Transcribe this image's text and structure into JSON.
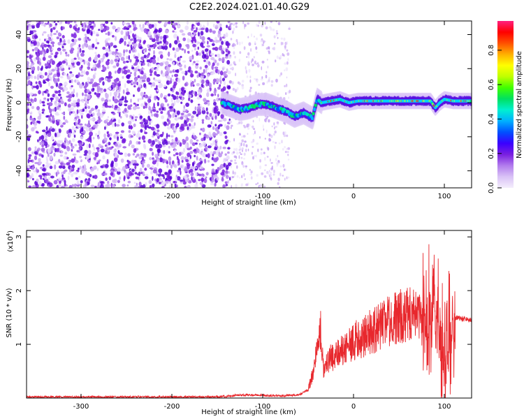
{
  "figure": {
    "title": "C2E2.2024.021.01.40.G29"
  },
  "chart_data": [
    {
      "type": "heatmap",
      "panel": "spectrogram",
      "xlabel": "Height of straight line (km)",
      "ylabel": "Frequency (Hz)",
      "xlim": [
        -360,
        130
      ],
      "ylim": [
        -50,
        48
      ],
      "xticks": [
        -300,
        -200,
        -100,
        0,
        100
      ],
      "yticks": [
        -40,
        -20,
        0,
        20,
        40
      ],
      "xtick_labels": [
        "-300",
        "-200",
        "-100",
        "0",
        "100"
      ],
      "ytick_labels": [
        "-40",
        "-20",
        "0",
        "20",
        "40"
      ],
      "colorbar": {
        "label": "Normalized spectral amplitude",
        "range": [
          0,
          0.97
        ],
        "ticks": [
          0.0,
          0.2,
          0.4,
          0.6,
          0.8
        ],
        "tick_labels": [
          "0.0",
          "0.2",
          "0.4",
          "0.6",
          "0.8"
        ],
        "colors": [
          "#f4eefc",
          "#d9c2f6",
          "#b27ced",
          "#7a1fe0",
          "#3a00ff",
          "#0050ff",
          "#00b0ff",
          "#00f0d0",
          "#00e060",
          "#40ff00",
          "#c0ff00",
          "#ffff00",
          "#ffb000",
          "#ff5000",
          "#ff0000",
          "#ff2080"
        ]
      },
      "regions": {
        "noise_dense_x": [
          -360,
          -135
        ],
        "noise_sparse_x": [
          -135,
          -70
        ],
        "signal_track": {
          "x": [
            -145,
            -135,
            -125,
            -115,
            -105,
            -95,
            -85,
            -75,
            -65,
            -55,
            -45,
            -40,
            -35,
            -25,
            -15,
            -5,
            5,
            15,
            25,
            35,
            45,
            55,
            65,
            75,
            85,
            90,
            95,
            100,
            110,
            120,
            130
          ],
          "y": [
            0,
            -2,
            -4,
            -3,
            -1,
            -1,
            -3,
            -5,
            -8,
            -6,
            -9,
            2,
            0,
            1,
            2,
            0,
            1,
            1,
            1,
            1,
            1,
            1,
            1,
            1,
            1,
            -3,
            0,
            2,
            1,
            1,
            1
          ]
        }
      }
    },
    {
      "type": "line",
      "panel": "snr",
      "xlabel": "Height of straight line (km)",
      "ylabel": "SNR (10 * v/v)",
      "scale_label": "(x10",
      "scale_exponent": "4",
      "scale_close": ")",
      "xlim": [
        -360,
        130
      ],
      "ylim": [
        0,
        3.12
      ],
      "xticks": [
        -300,
        -200,
        -100,
        0,
        100
      ],
      "yticks": [
        1,
        2,
        3
      ],
      "xtick_labels": [
        "-300",
        "-200",
        "-100",
        "0",
        "100"
      ],
      "ytick_labels": [
        "1",
        "2",
        "3"
      ],
      "line_color": "#e8282d",
      "series": [
        {
          "x": [
            -360,
            -300,
            -250,
            -200,
            -160,
            -140,
            -130,
            -115,
            -100,
            -80,
            -60,
            -50,
            -45,
            -40,
            -37,
            -35,
            -33,
            -30,
            -25,
            -20,
            -10,
            0,
            10,
            20,
            30,
            40,
            50,
            60,
            70,
            78,
            82,
            86,
            90,
            94,
            98,
            102,
            106,
            110,
            120,
            130
          ],
          "y": [
            0.02,
            0.02,
            0.02,
            0.02,
            0.02,
            0.03,
            0.05,
            0.06,
            0.05,
            0.04,
            0.06,
            0.15,
            0.45,
            0.9,
            1.3,
            1.05,
            0.5,
            0.6,
            0.75,
            0.8,
            0.95,
            1.05,
            1.15,
            1.25,
            1.35,
            1.45,
            1.5,
            1.55,
            1.5,
            1.45,
            1.6,
            1.55,
            1.4,
            1.3,
            1.0,
            0.9,
            1.2,
            1.5,
            1.48,
            1.45
          ]
        }
      ]
    }
  ]
}
